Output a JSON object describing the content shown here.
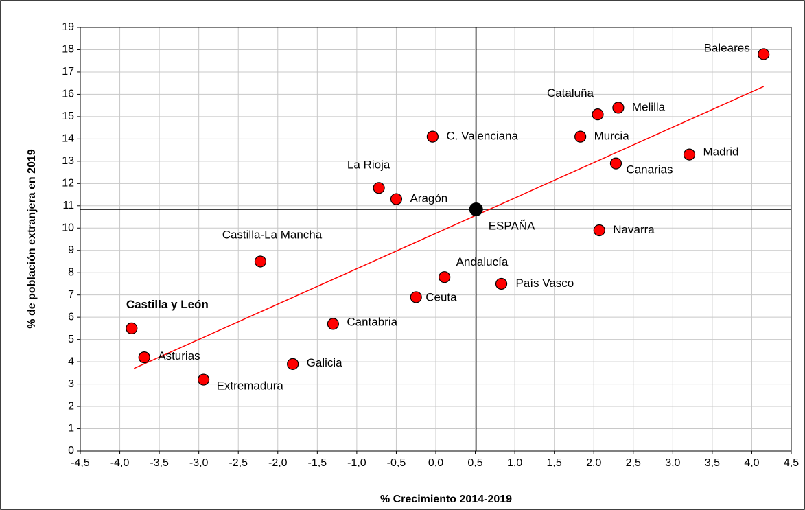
{
  "chart_data": {
    "type": "scatter",
    "x_label": "% Crecimiento 2014-2019",
    "y_label": "% de población extranjera en 2019",
    "xlim": [
      -4.5,
      4.5
    ],
    "ylim": [
      0,
      19
    ],
    "xticks": [
      {
        "value": -4.5,
        "label": "-4,5"
      },
      {
        "value": -4,
        "label": "-4,0"
      },
      {
        "value": -3.5,
        "label": "-3,5"
      },
      {
        "value": -3,
        "label": "-3,0"
      },
      {
        "value": -2.5,
        "label": "-2,5"
      },
      {
        "value": -2,
        "label": "-2,0"
      },
      {
        "value": -1.5,
        "label": "-1,5"
      },
      {
        "value": -1,
        "label": "-1,0"
      },
      {
        "value": -0.5,
        "label": "-0,5"
      },
      {
        "value": 0,
        "label": "0,0"
      },
      {
        "value": 0.5,
        "label": "0,5"
      },
      {
        "value": 1,
        "label": "1,0"
      },
      {
        "value": 1.5,
        "label": "1,5"
      },
      {
        "value": 2,
        "label": "2,0"
      },
      {
        "value": 2.5,
        "label": "2,5"
      },
      {
        "value": 3,
        "label": "3,0"
      },
      {
        "value": 3.5,
        "label": "3,5"
      },
      {
        "value": 4,
        "label": "4,0"
      },
      {
        "value": 4.5,
        "label": "4,5"
      }
    ],
    "yticks": [
      0,
      1,
      2,
      3,
      4,
      5,
      6,
      7,
      8,
      9,
      10,
      11,
      12,
      13,
      14,
      15,
      16,
      17,
      18,
      19
    ],
    "grid": true,
    "points": {
      "color": "#ff0000",
      "labels": [
        "Baleares",
        "Cataluña",
        "Melilla",
        "Murcia",
        "Madrid",
        "Canarias",
        "C. Valenciana",
        "La Rioja",
        "Aragón",
        "Navarra",
        "Castilla-La Mancha",
        "Andalucía",
        "País Vasco",
        "Ceuta",
        "Cantabria",
        "Castilla y León",
        "Asturias",
        "Galicia",
        "Extremadura"
      ],
      "x": [
        4.15,
        2.05,
        2.31,
        1.83,
        3.21,
        2.28,
        -0.04,
        -0.72,
        -0.5,
        2.07,
        -2.22,
        0.11,
        0.83,
        -0.25,
        -1.3,
        -3.85,
        -3.69,
        -1.81,
        -2.94
      ],
      "values": [
        17.8,
        15.1,
        15.4,
        14.1,
        13.3,
        12.9,
        14.1,
        11.8,
        11.3,
        9.9,
        8.5,
        7.8,
        7.5,
        6.9,
        5.7,
        5.5,
        4.2,
        3.9,
        3.2
      ]
    },
    "reference": {
      "label": "ESPAÑA",
      "x": 0.51,
      "value": 10.84,
      "color": "#000000"
    },
    "trendline": {
      "color": "#ff0000",
      "x": [
        -3.82,
        4.15
      ],
      "values": [
        3.7,
        16.35
      ]
    }
  }
}
